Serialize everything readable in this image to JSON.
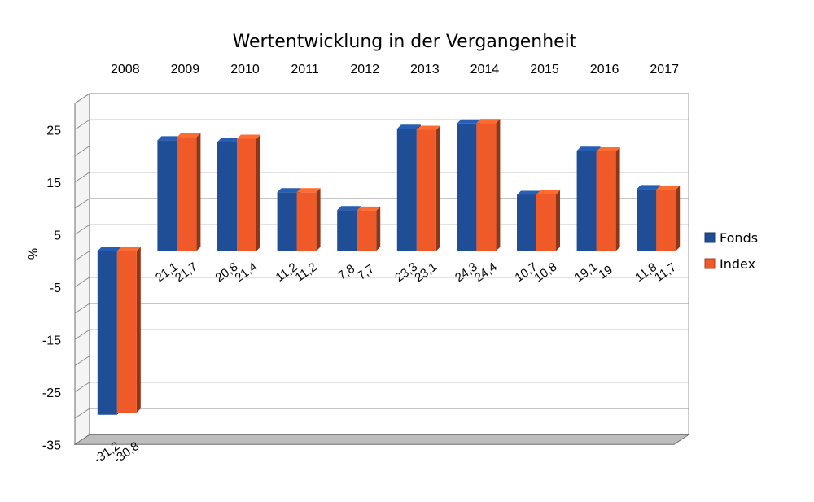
{
  "chart_data": {
    "type": "bar",
    "title": "Wertentwicklung in der Vergangenheit",
    "categories": [
      "2008",
      "2009",
      "2010",
      "2011",
      "2012",
      "2013",
      "2014",
      "2015",
      "2016",
      "2017"
    ],
    "series": [
      {
        "name": "Fonds",
        "color": "#1f4e96",
        "values": [
          -31.2,
          21.1,
          20.8,
          11.2,
          7.8,
          23.3,
          24.3,
          10.7,
          19.1,
          11.8
        ]
      },
      {
        "name": "Index",
        "color": "#f05a28",
        "values": [
          -30.8,
          21.7,
          21.4,
          11.2,
          7.7,
          23.1,
          24.4,
          10.8,
          19.0,
          11.7
        ]
      }
    ],
    "data_labels": [
      [
        "-31,2",
        "-30,8"
      ],
      [
        "21,1",
        "21,7"
      ],
      [
        "20,8",
        "21,4"
      ],
      [
        "11,2",
        "11,2"
      ],
      [
        "7,8",
        "7,7"
      ],
      [
        "23,3",
        "23,1"
      ],
      [
        "24,3",
        "24,4"
      ],
      [
        "10,7",
        "10,8"
      ],
      [
        "19,1",
        "19"
      ],
      [
        "11,8",
        "11,7"
      ]
    ],
    "y_ticks": [
      "25",
      "15",
      "5",
      "-5",
      "-15",
      "-25",
      "-35"
    ],
    "y_tick_values": [
      25,
      15,
      5,
      -5,
      -15,
      -25,
      -35
    ],
    "ylabel": "%",
    "ylim": [
      -35,
      30
    ],
    "grid": true,
    "legend": "right",
    "style": "3d"
  }
}
